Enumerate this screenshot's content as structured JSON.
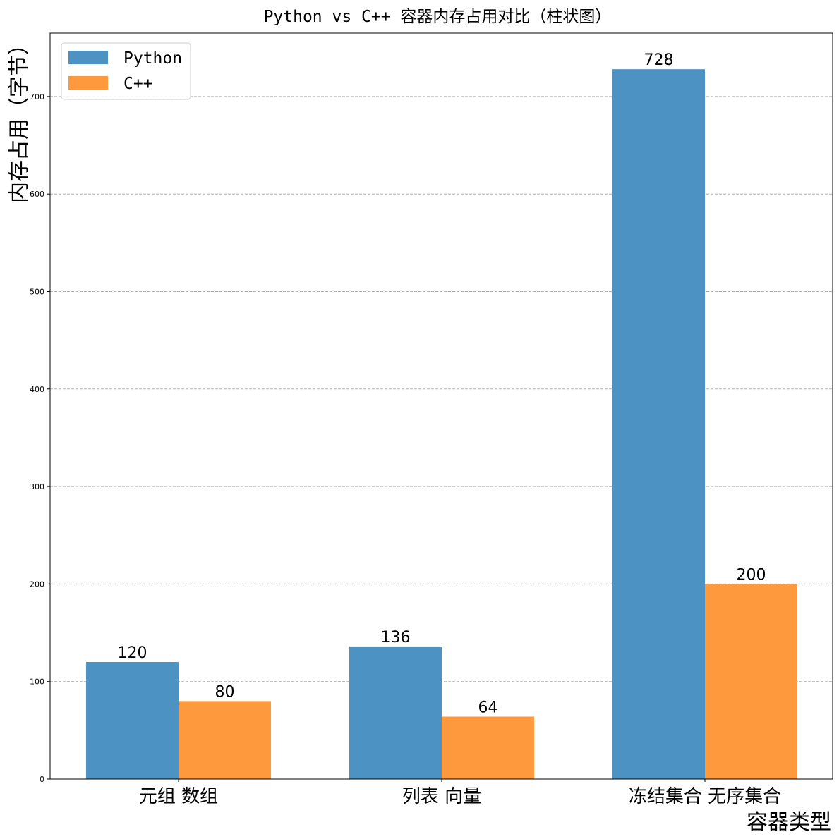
{
  "chart_data": {
    "type": "bar",
    "title": "Python vs C++ 容器内存占用对比（柱状图）",
    "xlabel": "容器类型",
    "ylabel": "内存占用（字节）",
    "categories": [
      "元组 数组",
      "列表 向量",
      "冻结集合 无序集合"
    ],
    "series": [
      {
        "name": "Python",
        "values": [
          120,
          136,
          728
        ],
        "color": "#4c92c3"
      },
      {
        "name": "C++",
        "values": [
          80,
          64,
          200
        ],
        "color": "#ff993e"
      }
    ],
    "ylim": [
      0,
      765
    ],
    "yticks": [
      0,
      100,
      200,
      300,
      400,
      500,
      600,
      700
    ],
    "grid": "y, dashed",
    "legend": "top-left"
  }
}
